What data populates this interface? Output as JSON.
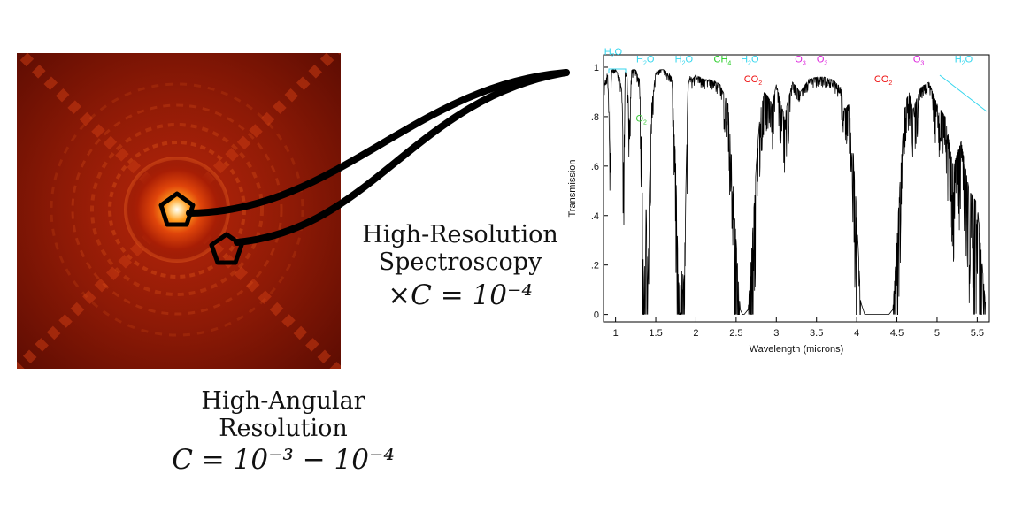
{
  "captions": {
    "imaging": {
      "line1": "High-Angular",
      "line2": "Resolution",
      "formula": "C = 10⁻³ − 10⁻⁴"
    },
    "spectroscopy": {
      "line1": "High-Resolution",
      "line2": "Spectroscopy",
      "formula": "×C = 10⁻⁴"
    }
  },
  "colors": {
    "H2O": "#33d6ee",
    "O2": "#36c936",
    "CH4": "#22cc22",
    "CO2": "#ee1111",
    "O3": "#dd22dd"
  },
  "chart_data": {
    "type": "line",
    "title": "",
    "xlabel": "Wavelength (microns)",
    "ylabel": "Transmission",
    "xlim": [
      0.85,
      5.65
    ],
    "ylim": [
      -0.03,
      1.05
    ],
    "x_ticks": [
      1,
      1.5,
      2,
      2.5,
      3,
      3.5,
      4,
      4.5,
      5,
      5.5
    ],
    "y_ticks": [
      0,
      0.2,
      0.4,
      0.6,
      0.8,
      1
    ],
    "y_tick_labels": [
      "0",
      ".2",
      ".4",
      ".6",
      ".8",
      "1"
    ],
    "grid": false,
    "series": [
      {
        "x": [
          0.85,
          0.9,
          0.93,
          0.95,
          1.0,
          1.05,
          1.08,
          1.1,
          1.12,
          1.14,
          1.17,
          1.2,
          1.25,
          1.3,
          1.33,
          1.35,
          1.38,
          1.4,
          1.42,
          1.45,
          1.5,
          1.55,
          1.6,
          1.65,
          1.7,
          1.75,
          1.78,
          1.8,
          1.83,
          1.85,
          1.88,
          1.9,
          1.93,
          1.95,
          1.98,
          2.0,
          2.1,
          2.2,
          2.3,
          2.4,
          2.45,
          2.5,
          2.55,
          2.58,
          2.6,
          2.65,
          2.7,
          2.75,
          2.8,
          2.85,
          2.9,
          2.95,
          3.0,
          3.1,
          3.2,
          3.3,
          3.4,
          3.5,
          3.6,
          3.7,
          3.8,
          3.85,
          3.9,
          3.95,
          4.0,
          4.05,
          4.1,
          4.15,
          4.2,
          4.3,
          4.4,
          4.45,
          4.5,
          4.55,
          4.6,
          4.65,
          4.7,
          4.8,
          4.9,
          5.0,
          5.1,
          5.2,
          5.3,
          5.4,
          5.5,
          5.6
        ],
        "y": [
          0.92,
          0.98,
          0.72,
          0.99,
          0.99,
          0.96,
          0.9,
          0.58,
          0.99,
          0.98,
          0.8,
          0.99,
          0.99,
          0.95,
          0.6,
          0.05,
          0.45,
          0.08,
          0.5,
          0.85,
          0.98,
          0.99,
          0.99,
          0.98,
          0.96,
          0.6,
          0.15,
          0.08,
          0.2,
          0.1,
          0.6,
          0.92,
          0.97,
          0.95,
          0.96,
          0.97,
          0.95,
          0.95,
          0.93,
          0.85,
          0.6,
          0.3,
          0.02,
          0.0,
          0.0,
          0.02,
          0.3,
          0.6,
          0.82,
          0.9,
          0.88,
          0.85,
          0.93,
          0.8,
          0.94,
          0.9,
          0.95,
          0.96,
          0.96,
          0.95,
          0.92,
          0.83,
          0.85,
          0.7,
          0.4,
          0.05,
          0.0,
          0.0,
          0.0,
          0.0,
          0.0,
          0.02,
          0.3,
          0.6,
          0.85,
          0.9,
          0.83,
          0.92,
          0.94,
          0.85,
          0.8,
          0.6,
          0.7,
          0.5,
          0.45,
          0.05
        ]
      }
    ],
    "annotations": [
      {
        "text": "H",
        "sub": "2",
        "tail": "O",
        "x": 0.97,
        "y": 1.05,
        "color": "#33d6ee"
      },
      {
        "text": "H",
        "sub": "2",
        "tail": "O",
        "x": 1.37,
        "y": 1.02,
        "color": "#33d6ee"
      },
      {
        "text": "H",
        "sub": "2",
        "tail": "O",
        "x": 1.85,
        "y": 1.02,
        "color": "#33d6ee"
      },
      {
        "text": "CH",
        "sub": "4",
        "tail": "",
        "x": 2.33,
        "y": 1.02,
        "color": "#22cc22"
      },
      {
        "text": "H",
        "sub": "2",
        "tail": "O",
        "x": 2.67,
        "y": 1.02,
        "color": "#33d6ee"
      },
      {
        "text": "CO",
        "sub": "2",
        "tail": "",
        "x": 2.71,
        "y": 0.94,
        "color": "#ee1111"
      },
      {
        "text": "O",
        "sub": "3",
        "tail": "",
        "x": 3.3,
        "y": 1.02,
        "color": "#dd22dd"
      },
      {
        "text": "O",
        "sub": "3",
        "tail": "",
        "x": 3.57,
        "y": 1.02,
        "color": "#dd22dd"
      },
      {
        "text": "CO",
        "sub": "2",
        "tail": "",
        "x": 4.33,
        "y": 0.94,
        "color": "#ee1111"
      },
      {
        "text": "O",
        "sub": "3",
        "tail": "",
        "x": 4.77,
        "y": 1.02,
        "color": "#dd22dd"
      },
      {
        "text": "H",
        "sub": "2",
        "tail": "O",
        "x": 5.33,
        "y": 1.02,
        "color": "#33d6ee"
      },
      {
        "text": "O",
        "sub": "2",
        "tail": "",
        "x": 1.32,
        "y": 0.78,
        "color": "#36c936"
      }
    ]
  }
}
